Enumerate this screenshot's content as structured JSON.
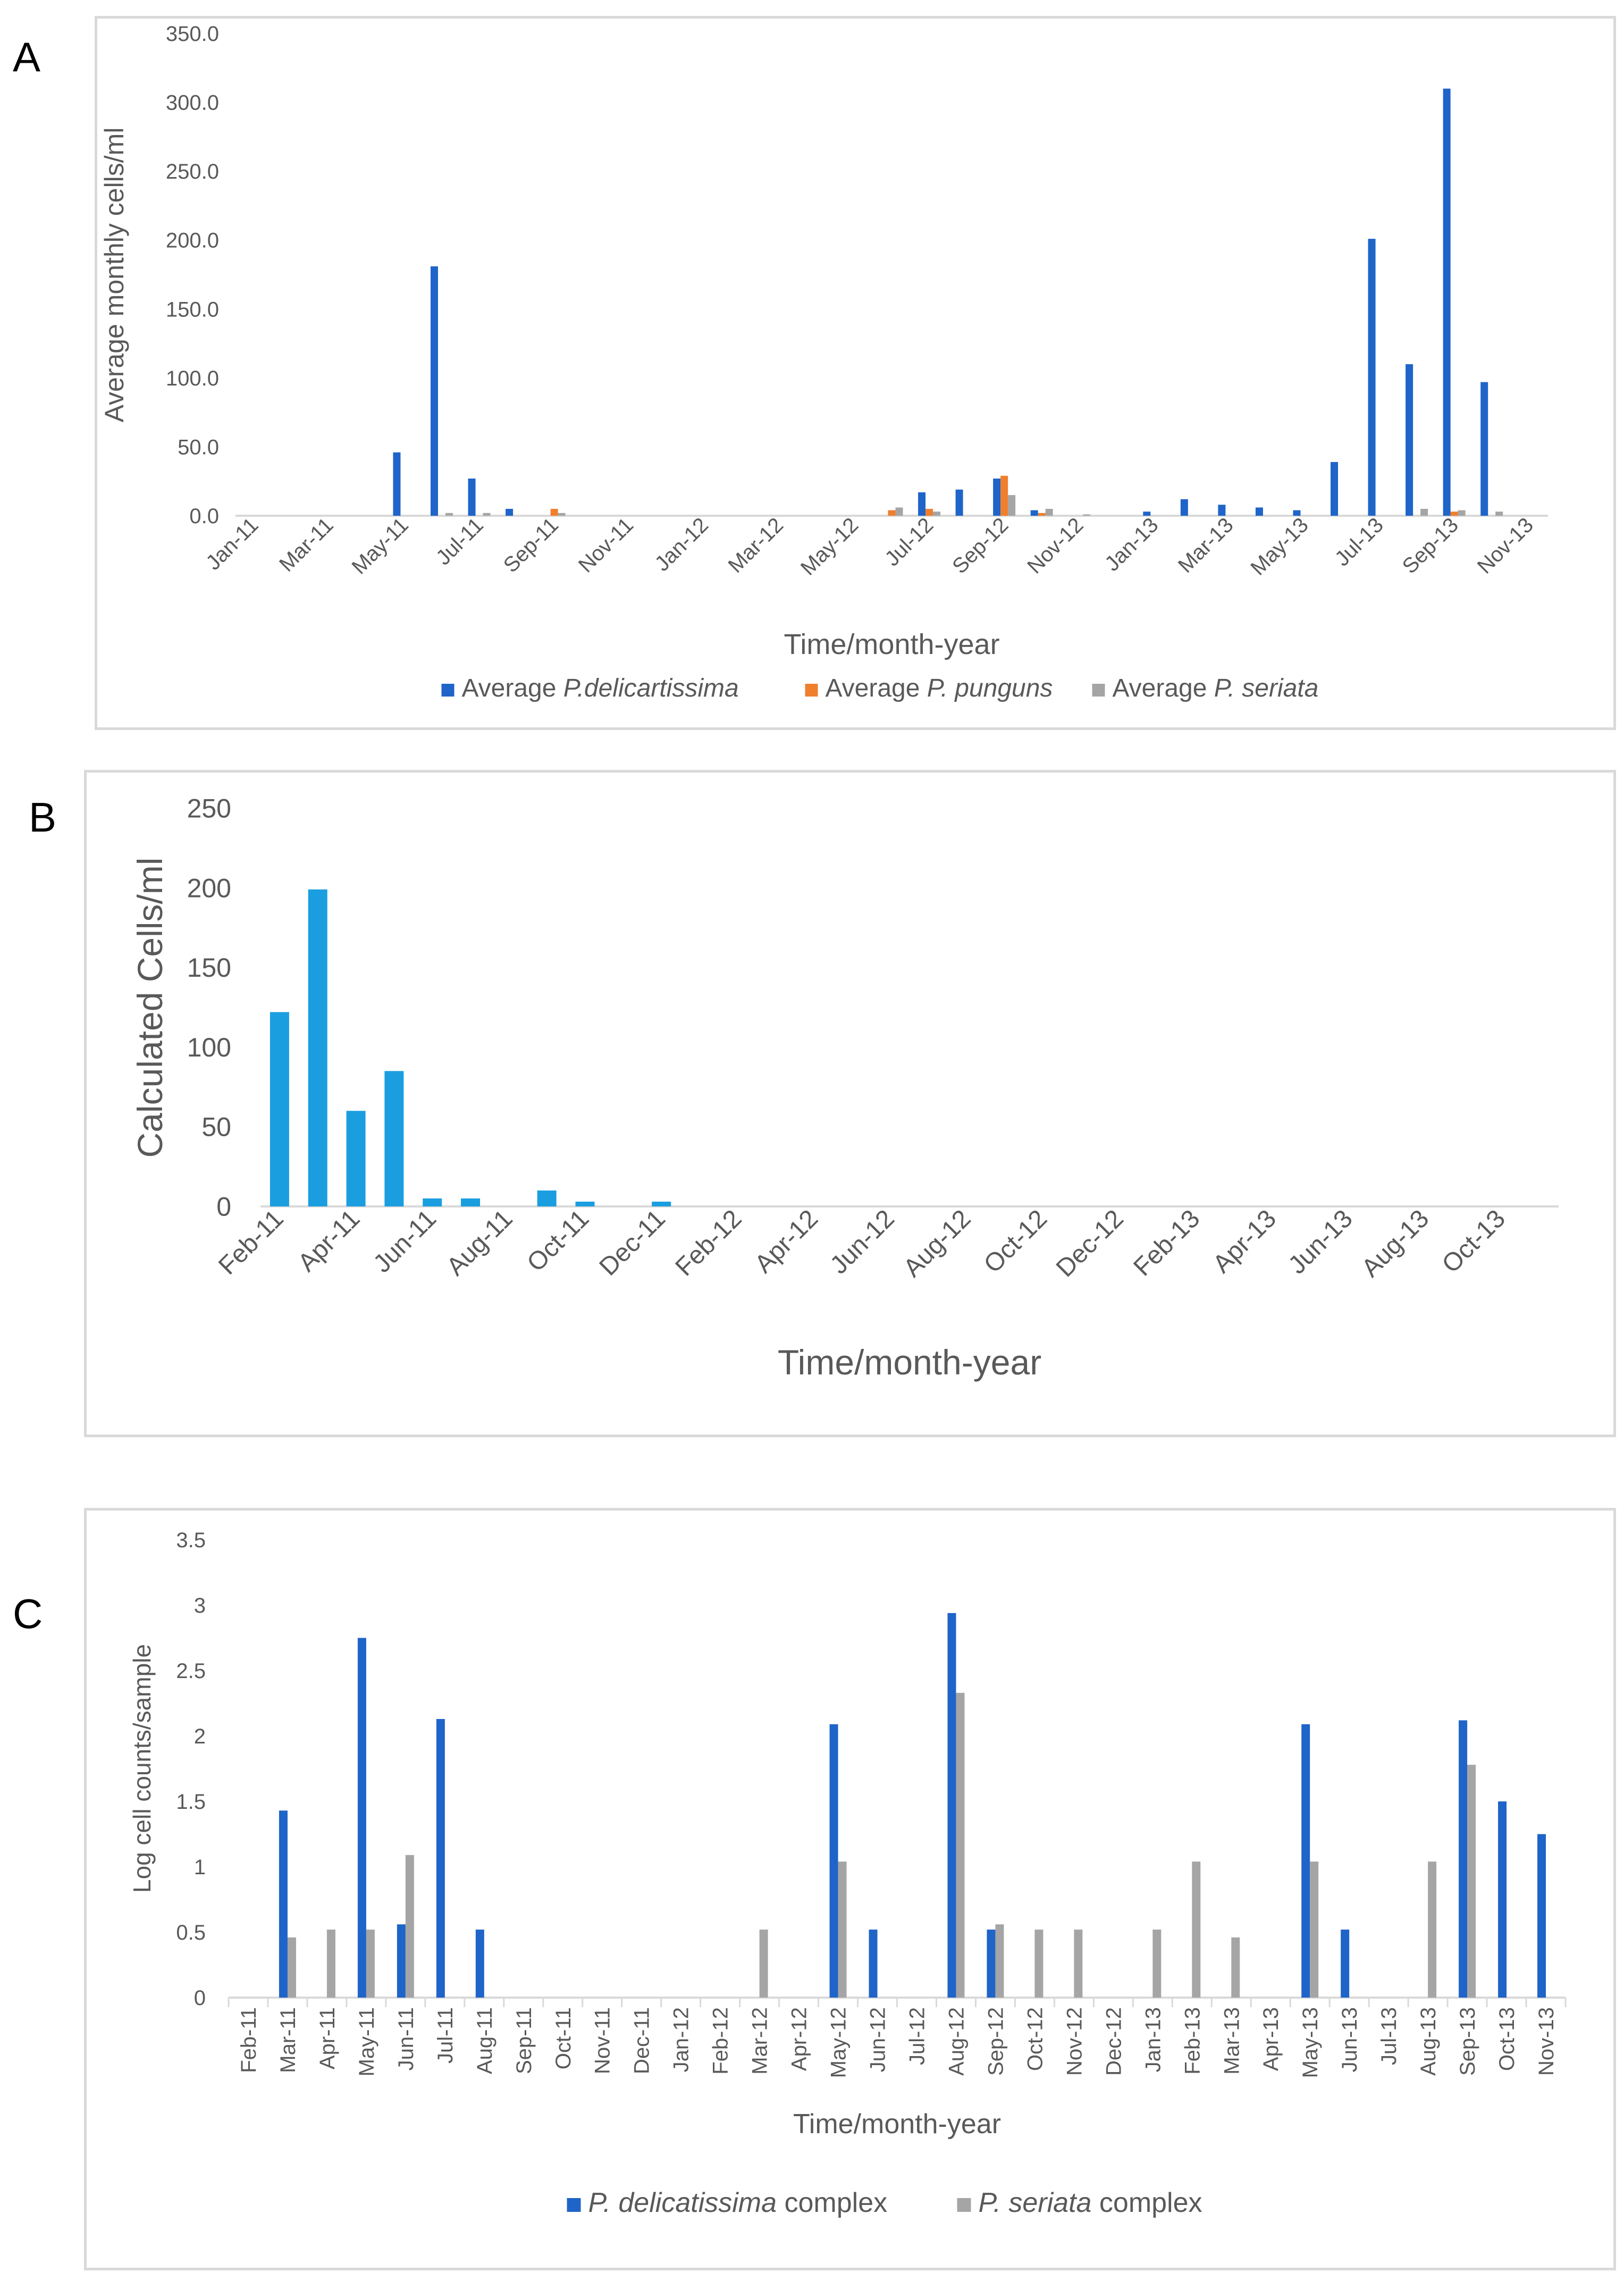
{
  "panel_labels": [
    "A",
    "B",
    "C"
  ],
  "chart_data": [
    {
      "panel": "A",
      "type": "bar",
      "ylabel": "Average monthly cells/ml",
      "xlabel": "Time/month-year",
      "ylim": [
        0,
        350
      ],
      "y_ticks": [
        "0.0",
        "50.0",
        "100.0",
        "150.0",
        "200.0",
        "250.0",
        "300.0",
        "350.0"
      ],
      "categories": [
        "Jan-11",
        "Feb-11",
        "Mar-11",
        "Apr-11",
        "May-11",
        "Jun-11",
        "Jul-11",
        "Aug-11",
        "Sep-11",
        "Oct-11",
        "Nov-11",
        "Dec-11",
        "Jan-12",
        "Feb-12",
        "Mar-12",
        "Apr-12",
        "May-12",
        "Jun-12",
        "Jul-12",
        "Aug-12",
        "Sep-12",
        "Oct-12",
        "Nov-12",
        "Dec-12",
        "Jan-13",
        "Feb-13",
        "Mar-13",
        "Apr-13",
        "May-13",
        "Jun-13",
        "Jul-13",
        "Aug-13",
        "Sep-13",
        "Oct-13",
        "Nov-13"
      ],
      "shown_tick_labels": [
        "Jan-11",
        "Mar-11",
        "May-11",
        "Jul-11",
        "Sep-11",
        "Nov-11",
        "Jan-12",
        "Mar-12",
        "May-12",
        "Jul-12",
        "Sep-12",
        "Nov-12",
        "Jan-13",
        "Mar-13",
        "May-13",
        "Jul-13",
        "Sep-13",
        "Nov-13"
      ],
      "series": [
        {
          "name": "Average P.delicartissima",
          "legend_prefix": "Average ",
          "legend_italic": "P.delicartissima",
          "legend_suffix": "",
          "color": "#1f64c8",
          "values": [
            0,
            0,
            0,
            0,
            46,
            181,
            27,
            5,
            0,
            0,
            0,
            0,
            0,
            0,
            0,
            0,
            0,
            0,
            17,
            19,
            27,
            4,
            0,
            0,
            3,
            12,
            8,
            6,
            4,
            39,
            201,
            110,
            310,
            97,
            0
          ]
        },
        {
          "name": "Average P. punguns",
          "legend_prefix": "Average ",
          "legend_italic": "P. punguns",
          "legend_suffix": "",
          "color": "#f07f2d",
          "values": [
            0,
            0,
            0,
            0,
            0,
            0,
            0,
            0,
            5,
            0,
            0,
            0,
            0,
            0,
            0,
            0,
            0,
            4,
            5,
            0,
            29,
            2,
            0,
            0,
            0,
            0,
            0,
            0,
            0,
            0,
            0,
            0,
            3,
            0,
            0
          ]
        },
        {
          "name": "Average P. seriata",
          "legend_prefix": "Average ",
          "legend_italic": "P. seriata",
          "legend_suffix": "",
          "color": "#a5a5a5",
          "values": [
            0,
            0,
            0,
            0,
            0,
            2,
            2,
            0,
            2,
            0,
            0,
            0,
            0,
            0,
            0,
            0,
            0,
            6,
            3,
            0,
            15,
            5,
            1,
            0,
            0,
            0,
            0,
            0,
            0,
            0,
            0,
            5,
            4,
            3,
            0
          ]
        }
      ]
    },
    {
      "panel": "B",
      "type": "bar",
      "ylabel": "Calculated Cells/ml",
      "xlabel": "Time/month-year",
      "ylim": [
        0,
        250
      ],
      "y_ticks": [
        "0",
        "50",
        "100",
        "150",
        "200",
        "250"
      ],
      "categories": [
        "Feb-11",
        "Mar-11",
        "Apr-11",
        "May-11",
        "Jun-11",
        "Jul-11",
        "Aug-11",
        "Sep-11",
        "Oct-11",
        "Nov-11",
        "Dec-11",
        "Jan-12",
        "Feb-12",
        "Mar-12",
        "Apr-12",
        "May-12",
        "Jun-12",
        "Jul-12",
        "Aug-12",
        "Sep-12",
        "Oct-12",
        "Nov-12",
        "Dec-12",
        "Jan-13",
        "Feb-13",
        "Mar-13",
        "Apr-13",
        "May-13",
        "Jun-13",
        "Jul-13",
        "Aug-13",
        "Sep-13",
        "Oct-13",
        "Nov-13"
      ],
      "shown_tick_labels": [
        "Feb-11",
        "Apr-11",
        "Jun-11",
        "Aug-11",
        "Oct-11",
        "Dec-11",
        "Feb-12",
        "Apr-12",
        "Jun-12",
        "Aug-12",
        "Oct-12",
        "Dec-12",
        "Feb-13",
        "Apr-13",
        "Jun-13",
        "Aug-13",
        "Oct-13"
      ],
      "series": [
        {
          "name": "Calculated Cells/ml",
          "color": "#1a9ee0",
          "values": [
            122,
            199,
            60,
            85,
            5,
            5,
            0,
            10,
            3,
            0,
            3,
            0,
            0,
            0,
            0,
            0,
            0,
            0,
            0,
            0,
            0,
            0,
            0,
            0,
            0,
            0,
            0,
            0,
            0,
            0,
            0,
            0,
            0,
            0
          ]
        }
      ]
    },
    {
      "panel": "C",
      "type": "bar",
      "ylabel": "Log cell counts/sample",
      "xlabel": "Time/month-year",
      "ylim": [
        0,
        3.5
      ],
      "y_ticks": [
        "0",
        "0.5",
        "1",
        "1.5",
        "2",
        "2.5",
        "3",
        "3.5"
      ],
      "categories": [
        "Feb-11",
        "Mar-11",
        "Apr-11",
        "May-11",
        "Jun-11",
        "Jul-11",
        "Aug-11",
        "Sep-11",
        "Oct-11",
        "Nov-11",
        "Dec-11",
        "Jan-12",
        "Feb-12",
        "Mar-12",
        "Apr-12",
        "May-12",
        "Jun-12",
        "Jul-12",
        "Aug-12",
        "Sep-12",
        "Oct-12",
        "Nov-12",
        "Dec-12",
        "Jan-13",
        "Feb-13",
        "Mar-13",
        "Apr-13",
        "May-13",
        "Jun-13",
        "Jul-13",
        "Aug-13",
        "Sep-13",
        "Oct-13",
        "Nov-13"
      ],
      "shown_tick_labels": [
        "Feb-11",
        "Mar-11",
        "Apr-11",
        "May-11",
        "Jun-11",
        "Jul-11",
        "Aug-11",
        "Sep-11",
        "Oct-11",
        "Nov-11",
        "Dec-11",
        "Jan-12",
        "Feb-12",
        "Mar-12",
        "Apr-12",
        "May-12",
        "Jun-12",
        "Jul-12",
        "Aug-12",
        "Sep-12",
        "Oct-12",
        "Nov-12",
        "Dec-12",
        "Jan-13",
        "Feb-13",
        "Mar-13",
        "Apr-13",
        "May-13",
        "Jun-13",
        "Jul-13",
        "Aug-13",
        "Sep-13",
        "Oct-13",
        "Nov-13"
      ],
      "series": [
        {
          "name": "P. delicatissima complex",
          "legend_prefix": "",
          "legend_italic": "P. delicatissima",
          "legend_suffix": " complex",
          "color": "#1f64c8",
          "values": [
            0,
            1.43,
            0,
            2.75,
            0.56,
            2.13,
            0.52,
            0,
            0,
            0,
            0,
            0,
            0,
            0,
            0,
            2.09,
            0.52,
            0,
            2.94,
            0.52,
            0,
            0,
            0,
            0,
            0,
            0,
            0,
            2.09,
            0.52,
            0,
            0,
            2.12,
            1.5,
            1.25
          ]
        },
        {
          "name": "P. seriata complex",
          "legend_prefix": "",
          "legend_italic": "P. seriata",
          "legend_suffix": " complex",
          "color": "#a5a5a5",
          "values": [
            0,
            0.46,
            0.52,
            0.52,
            1.09,
            0,
            0,
            0,
            0,
            0,
            0,
            0,
            0,
            0.52,
            0,
            1.04,
            0,
            0,
            2.33,
            0.56,
            0.52,
            0.52,
            0,
            0.52,
            1.04,
            0.46,
            0,
            1.04,
            0,
            0,
            1.04,
            1.78,
            0,
            0
          ]
        }
      ]
    }
  ]
}
